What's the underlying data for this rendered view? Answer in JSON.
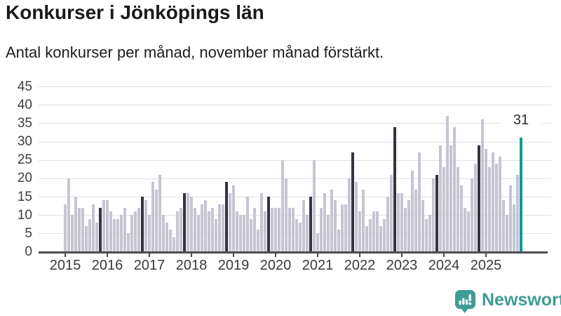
{
  "header": {
    "title": "Konkurser i Jönköpings län",
    "subtitle": "Antal konkurser per månad, november månad förstärkt."
  },
  "chart_data": {
    "type": "bar",
    "title": "Konkurser i Jönköpings län",
    "subtitle": "Antal konkurser per månad, november månad förstärkt.",
    "xlabel": "",
    "ylabel": "",
    "ylim": [
      0,
      47
    ],
    "yticks": [
      0,
      5,
      10,
      15,
      20,
      25,
      30,
      35,
      40,
      45
    ],
    "grid": true,
    "november_index": 10,
    "years": [
      {
        "label": "2015",
        "values": [
          13,
          20,
          10,
          15,
          12,
          12,
          7,
          9,
          13,
          8,
          12,
          14
        ]
      },
      {
        "label": "2016",
        "values": [
          14,
          11,
          9,
          9,
          10,
          12,
          5,
          10,
          11,
          12,
          15,
          14
        ]
      },
      {
        "label": "2017",
        "values": [
          10,
          19,
          17,
          21,
          10,
          8,
          6,
          4,
          11,
          12,
          16,
          16
        ]
      },
      {
        "label": "2018",
        "values": [
          15,
          12,
          10,
          13,
          14,
          11,
          12,
          9,
          13,
          13,
          19,
          16
        ]
      },
      {
        "label": "2019",
        "values": [
          18,
          11,
          10,
          10,
          15,
          9,
          12,
          6,
          16,
          11,
          15,
          12
        ]
      },
      {
        "label": "2020",
        "values": [
          12,
          12,
          25,
          20,
          12,
          12,
          9,
          8,
          14,
          10,
          15,
          25
        ]
      },
      {
        "label": "2021",
        "values": [
          5,
          12,
          16,
          10,
          17,
          14,
          6,
          13,
          13,
          20,
          27,
          19
        ]
      },
      {
        "label": "2022",
        "values": [
          11,
          17,
          7,
          9,
          11,
          11,
          7,
          9,
          15,
          21,
          34,
          16
        ]
      },
      {
        "label": "2023",
        "values": [
          16,
          12,
          14,
          22,
          17,
          27,
          14,
          9,
          10,
          20,
          21,
          29
        ]
      },
      {
        "label": "2024",
        "values": [
          23,
          37,
          29,
          34,
          23,
          18,
          12,
          11,
          20,
          24,
          29,
          36
        ]
      },
      {
        "label": "2025",
        "values": [
          28,
          23,
          27,
          24,
          26,
          14,
          10,
          18,
          13,
          21,
          31
        ]
      }
    ],
    "accent_bar": {
      "year": "2025",
      "month_index": 10,
      "value": 31
    },
    "annotation": {
      "text": "31"
    },
    "legend": null
  },
  "colors": {
    "bar_default": "#c7c5d2",
    "bar_november": "#35343f",
    "bar_accent": "#009e98",
    "gridline": "#e2e2e2",
    "axis": "#4d4d4d",
    "title_text": "#1a1a18",
    "tick_label": "#3a3a3a",
    "logo_teal": "#3f9c95"
  },
  "logo": {
    "text": "Newsworthy",
    "icon": "newsworthy-badge-icon"
  }
}
